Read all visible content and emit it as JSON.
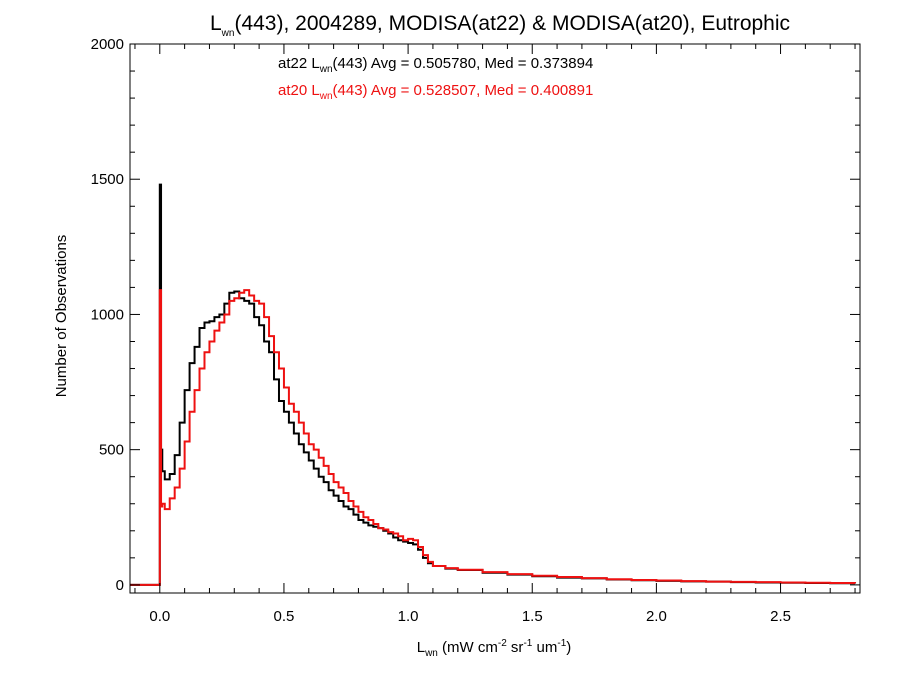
{
  "chart_data": {
    "type": "line",
    "style": "histogram-step",
    "title": {
      "pre": "L",
      "sub": "wn",
      "post": "(443), 2004289, MODISA(at22) & MODISA(at20), Eutrophic"
    },
    "xlabel": {
      "pre": "L",
      "sub": "wn",
      "mid": " (mW cm",
      "sup1": "-2",
      "mid2": " sr",
      "sup2": "-1",
      "mid3": " um",
      "sup3": "-1",
      "post": ")"
    },
    "ylabel": "Number of Observations",
    "xlim": [
      -0.12,
      2.82
    ],
    "ylim": [
      -30,
      2000
    ],
    "xticks": [
      0.0,
      0.5,
      1.0,
      1.5,
      2.0,
      2.5
    ],
    "xtick_labels": [
      "0.0",
      "0.5",
      "1.0",
      "1.5",
      "2.0",
      "2.5"
    ],
    "yticks": [
      0,
      500,
      1000,
      1500,
      2000
    ],
    "ytick_labels": [
      "0",
      "500",
      "1000",
      "1500",
      "2000"
    ],
    "grid": false,
    "annotations": [
      {
        "pre": "at22 L",
        "sub": "wn",
        "post": "(443) Avg = 0.505780, Med = 0.373894",
        "color": "#000000"
      },
      {
        "pre": "at20 L",
        "sub": "wn",
        "post": "(443) Avg = 0.528507, Med = 0.400891",
        "color": "#ee1111"
      }
    ],
    "series": [
      {
        "color": "#000000",
        "points": [
          [
            -0.12,
            0
          ],
          [
            0.0,
            0
          ],
          [
            0.0,
            1480
          ],
          [
            0.005,
            1480
          ],
          [
            0.005,
            500
          ],
          [
            0.01,
            420
          ],
          [
            0.02,
            390
          ],
          [
            0.04,
            410
          ],
          [
            0.06,
            480
          ],
          [
            0.08,
            600
          ],
          [
            0.1,
            720
          ],
          [
            0.12,
            820
          ],
          [
            0.14,
            880
          ],
          [
            0.16,
            950
          ],
          [
            0.18,
            970
          ],
          [
            0.2,
            975
          ],
          [
            0.22,
            990
          ],
          [
            0.24,
            1000
          ],
          [
            0.26,
            1040
          ],
          [
            0.28,
            1080
          ],
          [
            0.3,
            1085
          ],
          [
            0.32,
            1060
          ],
          [
            0.34,
            1050
          ],
          [
            0.36,
            1040
          ],
          [
            0.38,
            990
          ],
          [
            0.4,
            960
          ],
          [
            0.42,
            900
          ],
          [
            0.44,
            860
          ],
          [
            0.46,
            760
          ],
          [
            0.48,
            680
          ],
          [
            0.5,
            640
          ],
          [
            0.52,
            600
          ],
          [
            0.54,
            560
          ],
          [
            0.56,
            520
          ],
          [
            0.58,
            490
          ],
          [
            0.6,
            460
          ],
          [
            0.62,
            430
          ],
          [
            0.64,
            400
          ],
          [
            0.66,
            380
          ],
          [
            0.68,
            350
          ],
          [
            0.7,
            330
          ],
          [
            0.72,
            310
          ],
          [
            0.74,
            290
          ],
          [
            0.76,
            280
          ],
          [
            0.78,
            260
          ],
          [
            0.8,
            240
          ],
          [
            0.82,
            230
          ],
          [
            0.84,
            220
          ],
          [
            0.86,
            215
          ],
          [
            0.88,
            210
          ],
          [
            0.9,
            200
          ],
          [
            0.92,
            190
          ],
          [
            0.94,
            175
          ],
          [
            0.96,
            165
          ],
          [
            0.98,
            160
          ],
          [
            1.0,
            155
          ],
          [
            1.02,
            150
          ],
          [
            1.04,
            130
          ],
          [
            1.06,
            100
          ],
          [
            1.08,
            80
          ],
          [
            1.1,
            70
          ],
          [
            1.15,
            60
          ],
          [
            1.2,
            55
          ],
          [
            1.3,
            45
          ],
          [
            1.4,
            38
          ],
          [
            1.5,
            32
          ],
          [
            1.6,
            27
          ],
          [
            1.7,
            24
          ],
          [
            1.8,
            20
          ],
          [
            1.9,
            17
          ],
          [
            2.0,
            15
          ],
          [
            2.1,
            13
          ],
          [
            2.2,
            12
          ],
          [
            2.3,
            10
          ],
          [
            2.4,
            9
          ],
          [
            2.5,
            8
          ],
          [
            2.6,
            7
          ],
          [
            2.7,
            6
          ],
          [
            2.8,
            5
          ]
        ]
      },
      {
        "color": "#ee1111",
        "points": [
          [
            -0.12,
            0
          ],
          [
            0.0,
            0
          ],
          [
            0.0,
            1090
          ],
          [
            0.005,
            1090
          ],
          [
            0.005,
            290
          ],
          [
            0.01,
            300
          ],
          [
            0.02,
            280
          ],
          [
            0.04,
            320
          ],
          [
            0.06,
            360
          ],
          [
            0.08,
            430
          ],
          [
            0.1,
            530
          ],
          [
            0.12,
            640
          ],
          [
            0.14,
            720
          ],
          [
            0.16,
            800
          ],
          [
            0.18,
            860
          ],
          [
            0.2,
            900
          ],
          [
            0.22,
            940
          ],
          [
            0.24,
            970
          ],
          [
            0.26,
            1000
          ],
          [
            0.28,
            1050
          ],
          [
            0.3,
            1060
          ],
          [
            0.32,
            1080
          ],
          [
            0.34,
            1090
          ],
          [
            0.36,
            1070
          ],
          [
            0.38,
            1050
          ],
          [
            0.4,
            1040
          ],
          [
            0.42,
            990
          ],
          [
            0.44,
            920
          ],
          [
            0.46,
            860
          ],
          [
            0.48,
            800
          ],
          [
            0.5,
            730
          ],
          [
            0.52,
            670
          ],
          [
            0.54,
            640
          ],
          [
            0.56,
            600
          ],
          [
            0.58,
            560
          ],
          [
            0.6,
            520
          ],
          [
            0.62,
            500
          ],
          [
            0.64,
            470
          ],
          [
            0.66,
            440
          ],
          [
            0.68,
            410
          ],
          [
            0.7,
            380
          ],
          [
            0.72,
            360
          ],
          [
            0.74,
            340
          ],
          [
            0.76,
            310
          ],
          [
            0.78,
            290
          ],
          [
            0.8,
            270
          ],
          [
            0.82,
            250
          ],
          [
            0.84,
            240
          ],
          [
            0.86,
            225
          ],
          [
            0.88,
            210
          ],
          [
            0.9,
            205
          ],
          [
            0.92,
            195
          ],
          [
            0.94,
            190
          ],
          [
            0.96,
            180
          ],
          [
            0.98,
            165
          ],
          [
            1.0,
            170
          ],
          [
            1.02,
            165
          ],
          [
            1.04,
            140
          ],
          [
            1.06,
            110
          ],
          [
            1.08,
            85
          ],
          [
            1.1,
            70
          ],
          [
            1.15,
            62
          ],
          [
            1.2,
            56
          ],
          [
            1.3,
            47
          ],
          [
            1.4,
            40
          ],
          [
            1.5,
            34
          ],
          [
            1.6,
            29
          ],
          [
            1.7,
            25
          ],
          [
            1.8,
            21
          ],
          [
            1.9,
            18
          ],
          [
            2.0,
            16
          ],
          [
            2.1,
            14
          ],
          [
            2.2,
            12
          ],
          [
            2.3,
            11
          ],
          [
            2.4,
            10
          ],
          [
            2.5,
            9
          ],
          [
            2.6,
            8
          ],
          [
            2.7,
            7
          ],
          [
            2.8,
            6
          ]
        ]
      }
    ]
  }
}
